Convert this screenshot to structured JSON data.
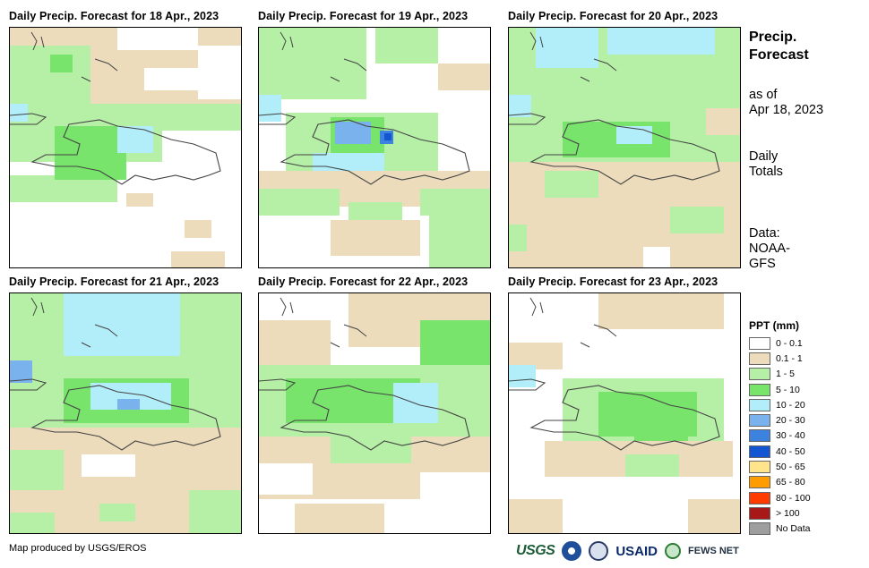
{
  "panels": [
    {
      "title": "Daily Precip. Forecast for 18 Apr., 2023"
    },
    {
      "title": "Daily Precip. Forecast for 19 Apr., 2023"
    },
    {
      "title": "Daily Precip. Forecast for 20 Apr., 2023"
    },
    {
      "title": "Daily Precip. Forecast for 21 Apr., 2023"
    },
    {
      "title": "Daily Precip. Forecast for 22 Apr., 2023"
    },
    {
      "title": "Daily Precip. Forecast for 23 Apr., 2023"
    }
  ],
  "sidebar": {
    "heading_line1": "Precip.",
    "heading_line2": "Forecast",
    "asof_line1": "as of",
    "asof_line2": "Apr 18, 2023",
    "totals_line1": "Daily",
    "totals_line2": "Totals",
    "source_line1": "Data:",
    "source_line2": "NOAA-",
    "source_line3": "GFS"
  },
  "legend": {
    "title": "PPT (mm)",
    "items": [
      {
        "label": "0 - 0.1",
        "color": "#ffffff"
      },
      {
        "label": "0.1 - 1",
        "color": "#ecdcbc"
      },
      {
        "label": "1 - 5",
        "color": "#b6f0a6"
      },
      {
        "label": "5 - 10",
        "color": "#78e46c"
      },
      {
        "label": "10 - 20",
        "color": "#b2eefa"
      },
      {
        "label": "20 - 30",
        "color": "#7ab2ee"
      },
      {
        "label": "30 - 40",
        "color": "#3e82e0"
      },
      {
        "label": "40 - 50",
        "color": "#1456d2"
      },
      {
        "label": "50 - 65",
        "color": "#ffe48c"
      },
      {
        "label": "65 - 80",
        "color": "#ff9c00"
      },
      {
        "label": "80 - 100",
        "color": "#ff3c00"
      },
      {
        "label": "> 100",
        "color": "#a81818"
      },
      {
        "label": "No Data",
        "color": "#9e9e9e"
      }
    ]
  },
  "footer": {
    "credit": "Map produced by USGS/EROS"
  },
  "logos": {
    "usgs": "USGS",
    "usaid": "USAID",
    "fews": "FEWS NET"
  }
}
